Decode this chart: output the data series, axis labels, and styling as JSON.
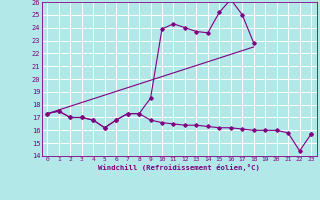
{
  "background_color": "#b2e8e8",
  "grid_color": "#ffffff",
  "line_color": "#800080",
  "x_ticks": [
    0,
    1,
    2,
    3,
    4,
    5,
    6,
    7,
    8,
    9,
    10,
    11,
    12,
    13,
    14,
    15,
    16,
    17,
    18,
    19,
    20,
    21,
    22,
    23
  ],
  "y_min": 14,
  "y_max": 26,
  "y_ticks": [
    14,
    15,
    16,
    17,
    18,
    19,
    20,
    21,
    22,
    23,
    24,
    25,
    26
  ],
  "xlabel": "Windchill (Refroidissement éolien,°C)",
  "series1_y": [
    17.3,
    17.5,
    17.0,
    17.0,
    16.8,
    16.2,
    16.8,
    17.3,
    17.3,
    16.8,
    16.6,
    16.5,
    16.4,
    16.4,
    16.3,
    16.2,
    16.2,
    16.1,
    16.0,
    16.0,
    16.0,
    15.8,
    14.4,
    15.7
  ],
  "series2_y": [
    17.3,
    17.5,
    17.0,
    17.0,
    16.8,
    16.2,
    16.8,
    17.3,
    17.3,
    18.5,
    23.9,
    24.3,
    24.0,
    23.7,
    23.6,
    25.2,
    26.2,
    25.0,
    22.8,
    null,
    null,
    null,
    null,
    15.7
  ],
  "trend_x": [
    0,
    18
  ],
  "trend_y": [
    17.3,
    22.5
  ]
}
